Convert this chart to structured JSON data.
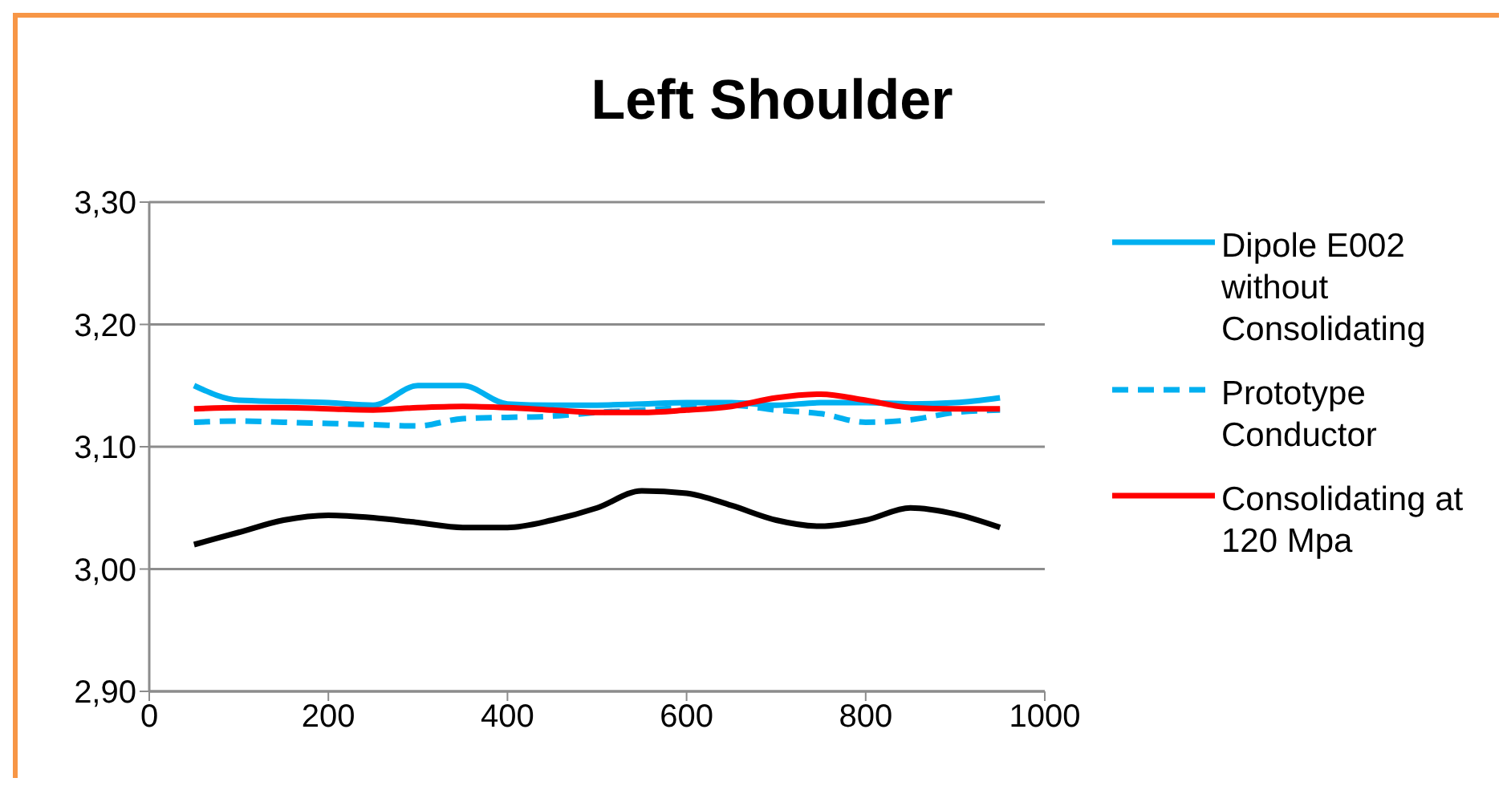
{
  "chart_data": {
    "type": "line",
    "title": "Left Shoulder",
    "x": [
      50,
      100,
      150,
      200,
      250,
      300,
      350,
      400,
      450,
      500,
      550,
      600,
      650,
      700,
      750,
      800,
      850,
      900,
      950
    ],
    "xlim": [
      0,
      1000
    ],
    "xticks": [
      0,
      200,
      400,
      600,
      800,
      1000
    ],
    "ylim": [
      2.9,
      3.3
    ],
    "yticks": [
      {
        "value": 2.9,
        "label": "2,90"
      },
      {
        "value": 3.0,
        "label": "3,00"
      },
      {
        "value": 3.1,
        "label": "3,10"
      },
      {
        "value": 3.2,
        "label": "3,20"
      },
      {
        "value": 3.3,
        "label": "3,30"
      }
    ],
    "grid": "y",
    "legend": "right",
    "marker": "none",
    "series": [
      {
        "name": "Dipole E002 without Consolidating",
        "color": "#00b0f0",
        "line_style": "solid",
        "values": [
          3.15,
          3.138,
          3.137,
          3.136,
          3.134,
          3.15,
          3.15,
          3.135,
          3.134,
          3.134,
          3.135,
          3.136,
          3.136,
          3.134,
          3.136,
          3.136,
          3.135,
          3.136,
          3.14
        ]
      },
      {
        "name": "Prototype Conductor",
        "color": "#00b0f0",
        "line_style": "dashed",
        "values": [
          3.12,
          3.121,
          3.12,
          3.119,
          3.118,
          3.117,
          3.123,
          3.124,
          3.125,
          3.128,
          3.13,
          3.132,
          3.134,
          3.13,
          3.127,
          3.12,
          3.122,
          3.128,
          3.13
        ]
      },
      {
        "name": "Consolidating at 120 Mpa",
        "color": "#ff0000",
        "line_style": "solid",
        "values": [
          3.131,
          3.132,
          3.132,
          3.131,
          3.13,
          3.132,
          3.133,
          3.132,
          3.13,
          3.128,
          3.128,
          3.13,
          3.133,
          3.14,
          3.143,
          3.138,
          3.132,
          3.131,
          3.131
        ]
      },
      {
        "color": "#000000",
        "line_style": "solid",
        "values": [
          3.02,
          3.03,
          3.04,
          3.044,
          3.042,
          3.038,
          3.034,
          3.034,
          3.04,
          3.05,
          3.064,
          3.062,
          3.052,
          3.04,
          3.035,
          3.04,
          3.05,
          3.045,
          3.034
        ]
      }
    ]
  }
}
